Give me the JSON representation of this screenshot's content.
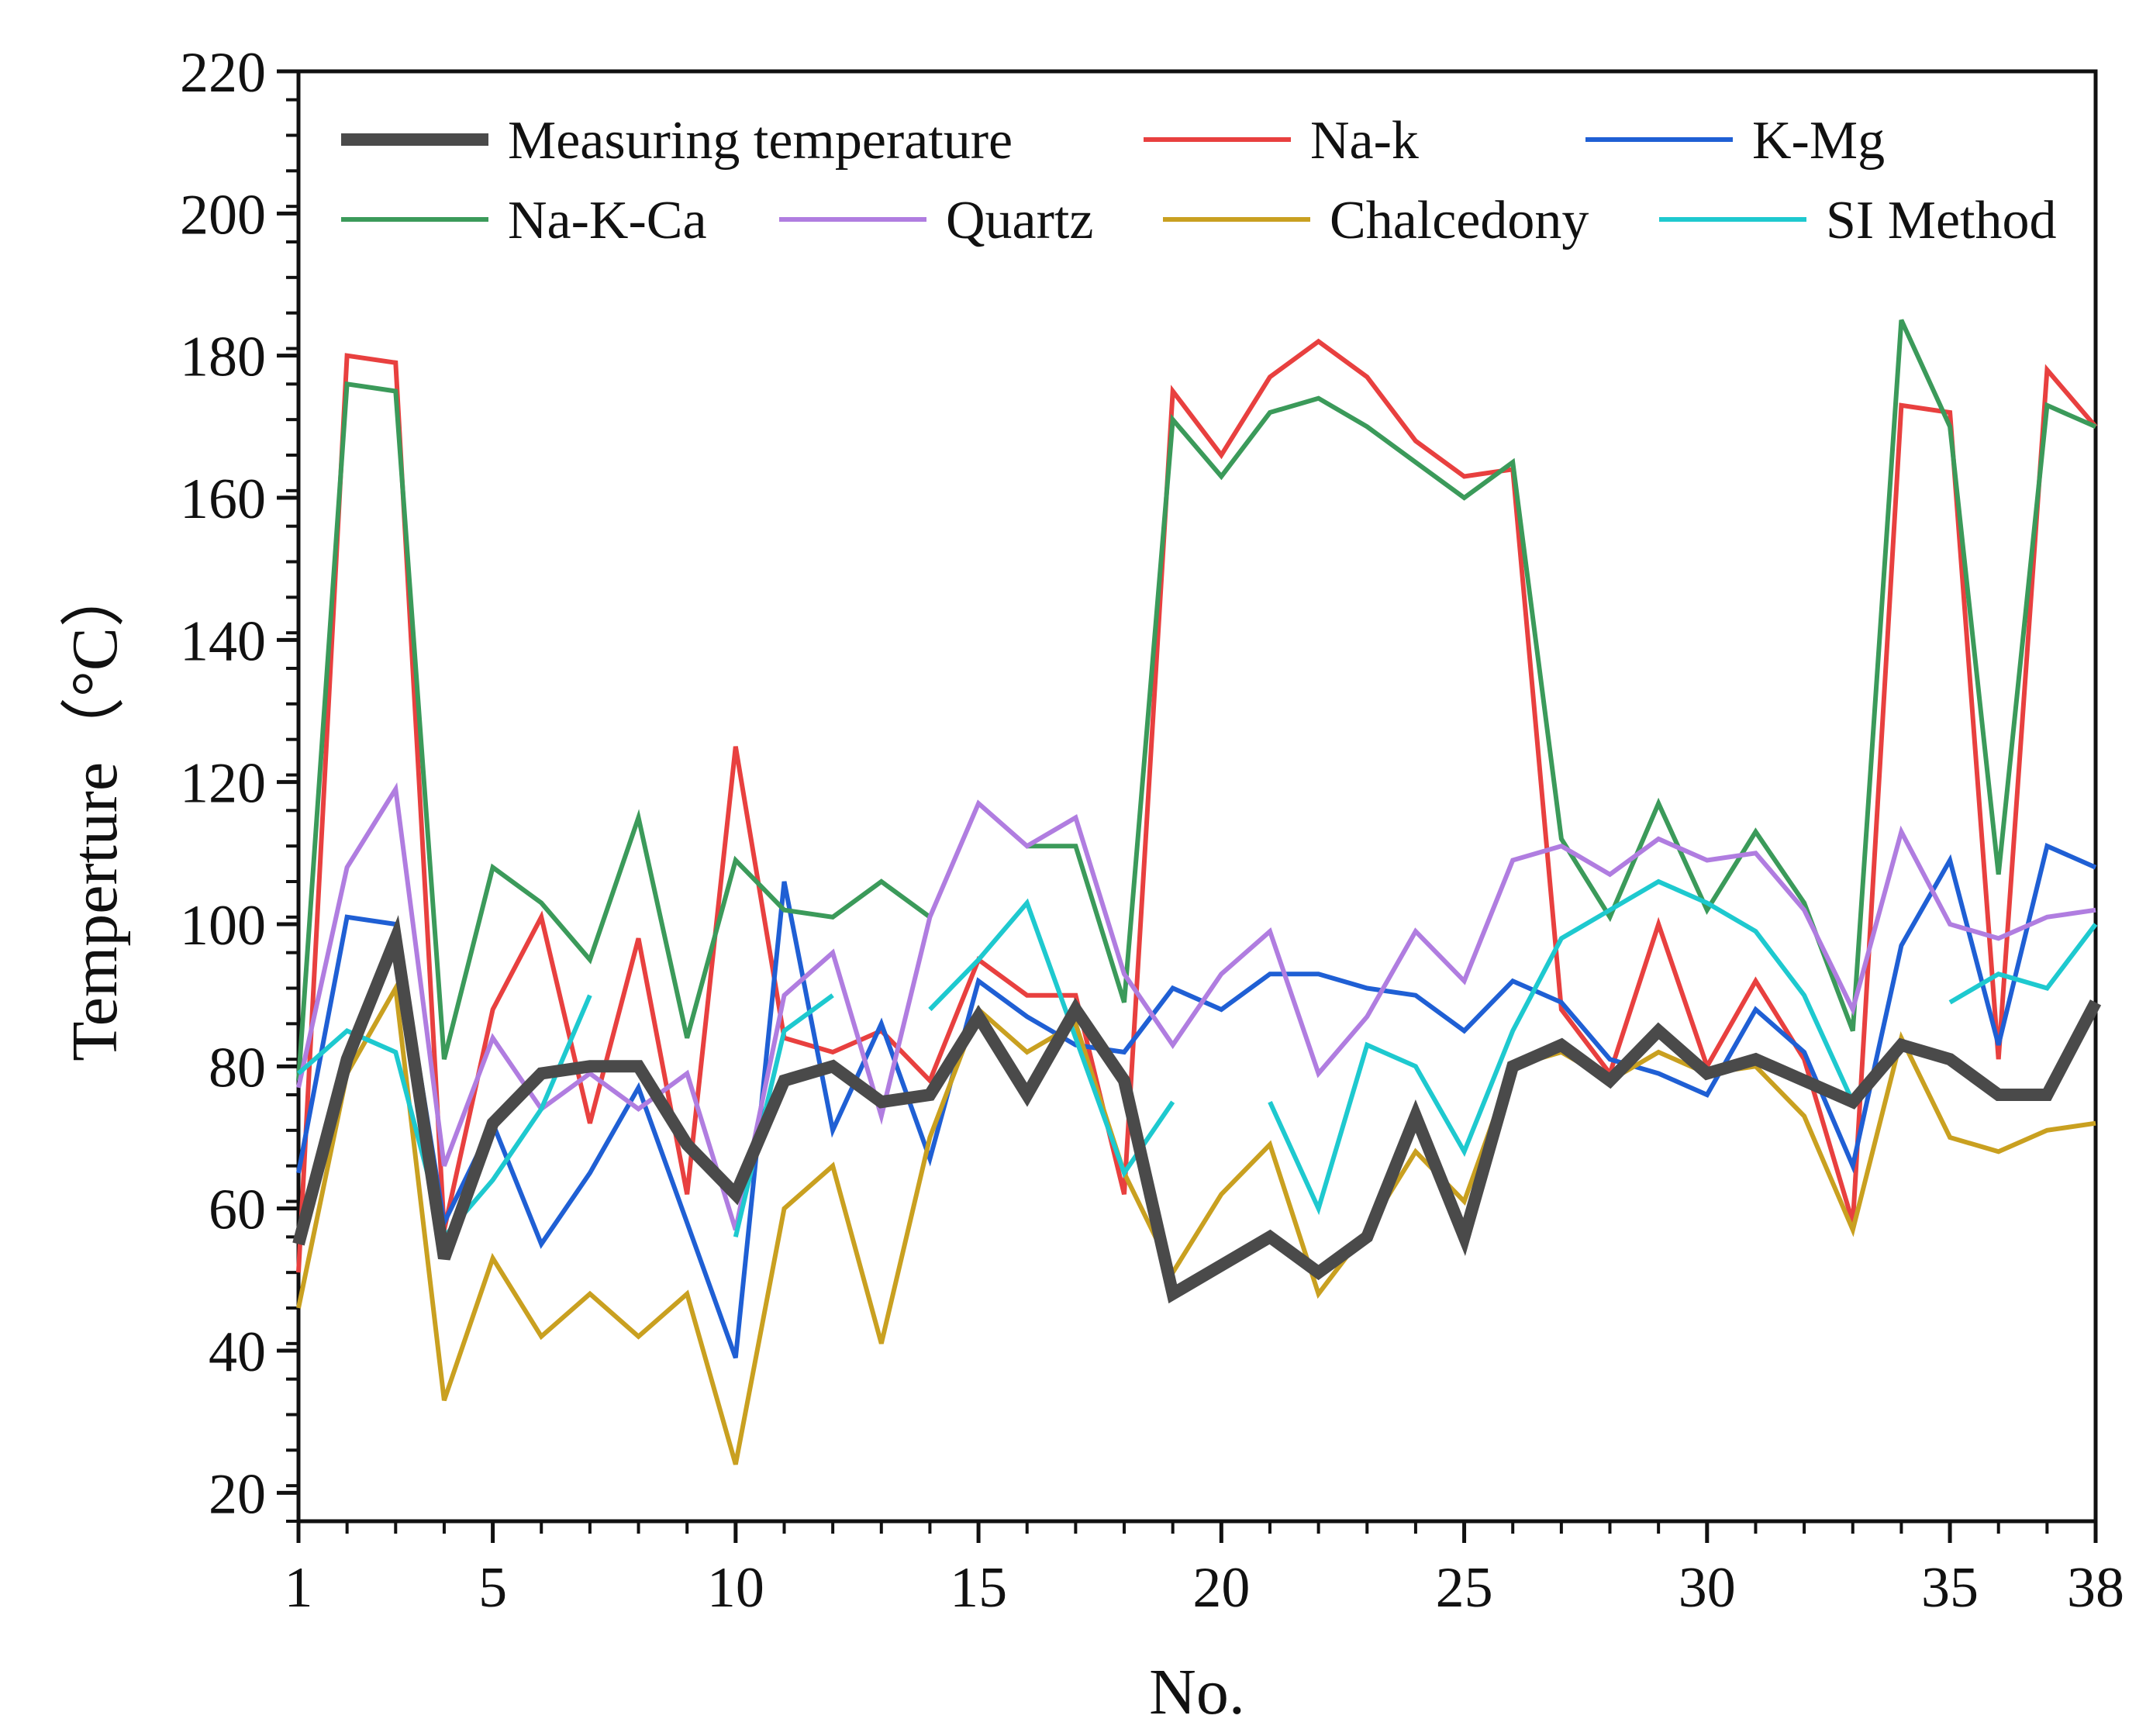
{
  "chart_data": {
    "type": "line",
    "title": "",
    "xlabel": "No.",
    "ylabel": "Temperture（°C）",
    "xlim": [
      1,
      38
    ],
    "ylim": [
      16,
      220
    ],
    "x_ticks": [
      1,
      5,
      10,
      15,
      20,
      25,
      30,
      35,
      38
    ],
    "x_tick_labels": [
      "1",
      "5",
      "10",
      "15",
      "20",
      "25",
      "30",
      "35",
      "38"
    ],
    "y_ticks": [
      20,
      40,
      60,
      80,
      100,
      120,
      140,
      160,
      180,
      200,
      220
    ],
    "y_tick_labels": [
      "20",
      "40",
      "60",
      "80",
      "100",
      "120",
      "140",
      "160",
      "180",
      "200",
      "220"
    ],
    "legend_position": "top",
    "x": [
      1,
      2,
      3,
      4,
      5,
      6,
      7,
      8,
      9,
      10,
      11,
      12,
      13,
      14,
      15,
      16,
      17,
      18,
      19,
      20,
      21,
      22,
      23,
      24,
      25,
      26,
      27,
      28,
      29,
      30,
      31,
      32,
      33,
      34,
      35,
      36,
      37,
      38
    ],
    "series": [
      {
        "name": "Measuring temperature",
        "color": "#4a4a4a",
        "width": 16,
        "values": [
          55,
          81,
          98,
          53,
          72,
          79,
          80,
          80,
          69,
          62,
          78,
          80,
          75,
          76,
          87,
          76,
          88,
          78,
          48,
          52,
          56,
          51,
          56,
          73,
          56,
          80,
          83,
          78,
          85,
          79,
          81,
          78,
          75,
          83,
          81,
          76,
          76,
          89
        ]
      },
      {
        "name": "Na-k",
        "color": "#e8403f",
        "width": 6,
        "values": [
          51,
          180,
          179,
          57,
          88,
          101,
          72,
          98,
          62,
          125,
          84,
          82,
          85,
          78,
          95,
          90,
          90,
          62,
          175,
          166,
          177,
          182,
          177,
          168,
          163,
          164,
          88,
          79,
          100,
          80,
          92,
          81,
          58,
          173,
          172,
          81,
          178,
          170
        ]
      },
      {
        "name": "K-Mg",
        "color": "#1f5fd4",
        "width": 6,
        "values": [
          65,
          101,
          100,
          58,
          72,
          55,
          65,
          77,
          58,
          39,
          106,
          71,
          86,
          67,
          92,
          87,
          83,
          82,
          91,
          88,
          93,
          93,
          91,
          90,
          85,
          92,
          89,
          81,
          79,
          76,
          88,
          82,
          66,
          97,
          109,
          83,
          111,
          108
        ]
      },
      {
        "name": "Na-K-Ca",
        "color": "#3b9a5a",
        "width": 6,
        "values": [
          78,
          176,
          175,
          81,
          108,
          103,
          95,
          115,
          84,
          109,
          102,
          101,
          106,
          101,
          null,
          111,
          111,
          89,
          171,
          163,
          172,
          174,
          170,
          165,
          160,
          165,
          112,
          101,
          117,
          102,
          113,
          103,
          85,
          185,
          170,
          107,
          173,
          170
        ]
      },
      {
        "name": "Quartz",
        "color": "#b07de0",
        "width": 6,
        "values": [
          77,
          108,
          119,
          66,
          84,
          74,
          79,
          74,
          79,
          57,
          90,
          96,
          73,
          101,
          117,
          111,
          115,
          93,
          83,
          93,
          99,
          79,
          87,
          99,
          92,
          109,
          111,
          107,
          112,
          109,
          110,
          102,
          88,
          113,
          100,
          98,
          101,
          102
        ]
      },
      {
        "name": "Chalcedony",
        "color": "#c9a020",
        "width": 6,
        "values": [
          46,
          79,
          91,
          33,
          53,
          42,
          48,
          42,
          48,
          24,
          60,
          66,
          41,
          70,
          88,
          82,
          86,
          65,
          51,
          62,
          69,
          48,
          57,
          68,
          61,
          80,
          82,
          78,
          82,
          79,
          80,
          73,
          57,
          84,
          70,
          68,
          71,
          72
        ]
      },
      {
        "name": "SI Method",
        "color": "#1ec9cf",
        "width": 6,
        "values": [
          79,
          85,
          82,
          56,
          64,
          74,
          90,
          null,
          null,
          56,
          85,
          90,
          null,
          88,
          95,
          103,
          84,
          65,
          75,
          null,
          75,
          60,
          83,
          80,
          68,
          85,
          98,
          102,
          106,
          103,
          99,
          90,
          75,
          null,
          89,
          93,
          91,
          100
        ]
      }
    ]
  }
}
